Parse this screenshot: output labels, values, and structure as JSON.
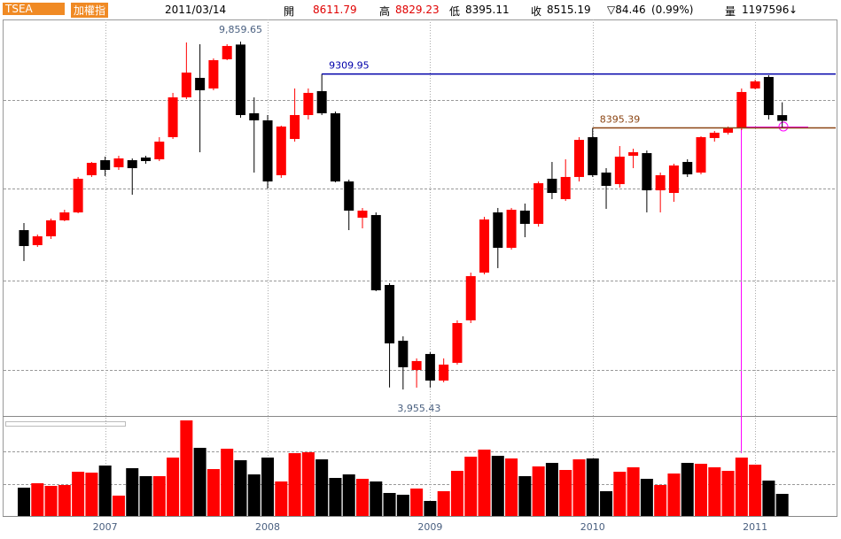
{
  "header": {
    "code": "TSEA",
    "name": "加權指",
    "date": "2011/03/14",
    "open_label": "開",
    "open": "8611.79",
    "high_label": "高",
    "high": "8829.23",
    "low_label": "低",
    "low": "8395.11",
    "close_label": "收",
    "close": "8515.19",
    "change": "▽84.46",
    "change_pct": "(0.99%)",
    "volume_label": "量",
    "volume": "1197596",
    "arrow": "↓"
  },
  "chart_data": {
    "type": "candlestick",
    "categories": [
      null,
      null,
      null,
      null,
      null,
      null,
      "2007",
      null,
      null,
      null,
      null,
      null,
      null,
      null,
      null,
      null,
      null,
      null,
      "2008",
      null,
      null,
      null,
      null,
      null,
      null,
      null,
      null,
      null,
      null,
      null,
      "2009",
      null,
      null,
      null,
      null,
      null,
      null,
      null,
      null,
      null,
      null,
      null,
      "2010",
      null,
      null,
      null,
      null,
      null,
      null,
      null,
      null,
      null,
      null,
      null,
      "2011",
      null,
      null
    ],
    "open": [
      6660,
      6405,
      6555,
      6826,
      6961,
      7592,
      7847,
      7727,
      7847,
      7892,
      7862,
      8238,
      8913,
      9244,
      9064,
      9559,
      9809,
      8643,
      8523,
      7592,
      8207,
      8613,
      9019,
      8643,
      7486,
      6871,
      6916,
      5729,
      4783,
      4287,
      4558,
      4107,
      4408,
      5129,
      5939,
      6961,
      6360,
      6991,
      6766,
      7532,
      7186,
      7562,
      8238,
      7637,
      7441,
      7922,
      7967,
      7336,
      7291,
      7817,
      7637,
      8223,
      8313,
      8388,
      9064,
      9259,
      8611.79
    ],
    "high": [
      6781,
      6585,
      6856,
      7006,
      7562,
      7817,
      7907,
      7922,
      7877,
      7922,
      8238,
      8989,
      9845,
      9815,
      9574,
      9815,
      9859.65,
      8913,
      8613,
      8433,
      9064,
      9064,
      9309.95,
      8673,
      7517,
      7036,
      6961,
      5759,
      4858,
      4483,
      4588,
      4483,
      5129,
      5939,
      6886,
      7036,
      7036,
      7111,
      7486,
      7817,
      7862,
      8238,
      8395.39,
      7712,
      8087,
      8042,
      8012,
      7637,
      7787,
      7862,
      8253,
      8343,
      8418,
      9064,
      9214,
      9289,
      8829.23
    ],
    "low": [
      6135,
      6375,
      6510,
      6811,
      6946,
      7562,
      7577,
      7682,
      7261,
      7787,
      7832,
      8207,
      8883,
      7982,
      9034,
      9544,
      8568,
      7637,
      7366,
      7547,
      8162,
      8538,
      8613,
      7471,
      6660,
      6690,
      5624,
      3990,
      3955.43,
      3987,
      3987,
      4077,
      4378,
      5083,
      5909,
      6015,
      6330,
      6540,
      6720,
      7186,
      7156,
      7486,
      7562,
      7021,
      7381,
      7712,
      6961,
      6961,
      7141,
      7562,
      7607,
      8162,
      8283,
      8358,
      9049,
      8538,
      8395.11
    ],
    "close": [
      6390,
      6555,
      6826,
      6961,
      7532,
      7802,
      7682,
      7877,
      7712,
      7832,
      8162,
      8913,
      9334,
      9034,
      9544,
      9785,
      8613,
      8523,
      7486,
      8418,
      8613,
      8989,
      8643,
      7486,
      6991,
      6991,
      5639,
      4738,
      4333,
      4438,
      4107,
      4378,
      5083,
      5879,
      6841,
      6360,
      7006,
      6766,
      7456,
      7291,
      7562,
      8192,
      7592,
      7411,
      7907,
      7982,
      7336,
      7592,
      7757,
      7607,
      8238,
      8313,
      8388,
      9004,
      9184,
      8613,
      8515.19
    ],
    "volume": [
      1533000,
      1772000,
      1629000,
      1677000,
      2395000,
      2347000,
      2731000,
      1102000,
      2587000,
      2156000,
      2156000,
      3162000,
      5174000,
      3689000,
      2539000,
      3641000,
      3018000,
      2251000,
      3162000,
      1868000,
      3401000,
      3449000,
      3066000,
      2060000,
      2251000,
      2012000,
      1868000,
      1246000,
      1150000,
      1485000,
      814000,
      1341000,
      2443000,
      3210000,
      3593000,
      3257000,
      3114000,
      2156000,
      2683000,
      2874000,
      2491000,
      3066000,
      3114000,
      1341000,
      2395000,
      2635000,
      2012000,
      1677000,
      2299000,
      2874000,
      2826000,
      2635000,
      2443000,
      3162000,
      2778000,
      1916000,
      1197596
    ],
    "up_color": "#ff0000",
    "down_color": "#000000",
    "ylim": [
      3536,
      10235
    ],
    "ygrid": [
      8868,
      7366,
      5804,
      4287
    ],
    "volume_lim": [
      0,
      5317000
    ],
    "volume_grid": [
      1725000,
      3497000
    ],
    "high_label": "9,859.65",
    "low_label": "3,955.43",
    "reference_lines": [
      {
        "label": "9309.95",
        "value": 9309.95,
        "color": "#0000aa"
      },
      {
        "label": "8395.39",
        "value": 8395.39,
        "color": "#8b4513"
      }
    ]
  }
}
